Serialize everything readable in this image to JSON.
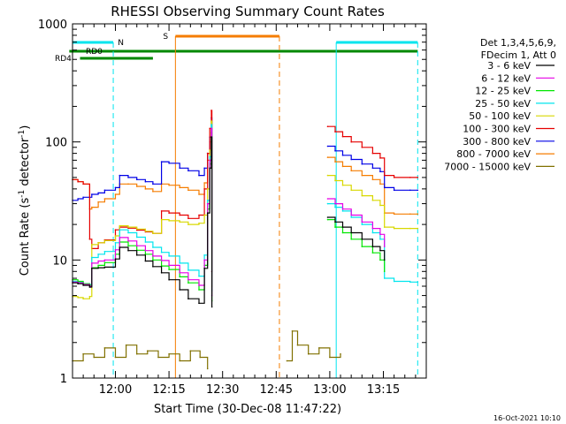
{
  "chart_data": {
    "type": "line",
    "title": "RHESSI Observing Summary Count Rates",
    "xlabel": "Start Time (30-Dec-08 11:47:22)",
    "ylabel_main": "Count Rate (s",
    "ylabel_sup1": "-1",
    "ylabel_mid": " detector",
    "ylabel_sup2": "-1",
    "ylabel_end": ")",
    "y_scale": "log",
    "ylim": [
      1,
      1000
    ],
    "xlim_minutes": [
      -4.0,
      29.0
    ],
    "y_ticks": [
      {
        "value": 1,
        "label": "1"
      },
      {
        "value": 10,
        "label": "10"
      },
      {
        "value": 100,
        "label": "100"
      },
      {
        "value": 1000,
        "label": "1000"
      }
    ],
    "x_ticks": [
      {
        "value": 0,
        "label": "12:00"
      },
      {
        "value": 5,
        "label": "12:15"
      },
      {
        "value": 10,
        "label": "12:30"
      },
      {
        "value": 15,
        "label": "12:45"
      },
      {
        "value": 20,
        "label": "13:00"
      },
      {
        "value": 25,
        "label": "13:15"
      }
    ],
    "legend_placement": "top-right",
    "legend_header": [
      "Det 1,3,4,5,6,9,",
      "FDecim 1, Att 0"
    ],
    "footer_date": "16-Oct-2021 10:10",
    "flags": [
      {
        "name": "N",
        "color": "#00e5ee"
      },
      {
        "name": "S",
        "color": "#f57d00"
      },
      {
        "name": "RD0",
        "color": "#008800"
      },
      {
        "name": "RD4",
        "color": "#008800"
      }
    ],
    "series": [
      {
        "name": "3 - 6 keV",
        "color": "#000000",
        "points": [
          [
            -4,
            6.4
          ],
          [
            -3.5,
            6.3
          ],
          [
            -3,
            6.1
          ],
          [
            -2.4,
            5.9
          ],
          [
            -2.2,
            8.5
          ],
          [
            -1.6,
            8.6
          ],
          [
            -1,
            8.7
          ],
          [
            0,
            10.2
          ],
          [
            0.4,
            12.8
          ],
          [
            1.2,
            12.0
          ],
          [
            2,
            11.0
          ],
          [
            2.8,
            9.8
          ],
          [
            3.5,
            8.8
          ],
          [
            4.3,
            7.8
          ],
          [
            5,
            6.8
          ],
          [
            6,
            5.6
          ],
          [
            6.8,
            4.7
          ],
          [
            7.8,
            4.3
          ],
          [
            8.3,
            8.5
          ],
          [
            8.6,
            25
          ],
          [
            8.8,
            60
          ],
          [
            8.95,
            110
          ],
          [
            9.0,
            4
          ],
          [
            19.8,
            23
          ],
          [
            20.5,
            21
          ],
          [
            21.2,
            19
          ],
          [
            22,
            17
          ],
          [
            23,
            15
          ],
          [
            24,
            13
          ],
          [
            24.7,
            12
          ],
          [
            25.1,
            10
          ]
        ]
      },
      {
        "name": "6 - 12 keV",
        "color": "#e600e6",
        "points": [
          [
            -4,
            6.5
          ],
          [
            -3.5,
            6.4
          ],
          [
            -3,
            6.2
          ],
          [
            -2.4,
            6.0
          ],
          [
            -2.2,
            9.4
          ],
          [
            -1.6,
            9.8
          ],
          [
            -1,
            10.0
          ],
          [
            0,
            12.2
          ],
          [
            0.4,
            15.5
          ],
          [
            1.2,
            14.5
          ],
          [
            2,
            13.2
          ],
          [
            2.8,
            12.0
          ],
          [
            3.5,
            10.8
          ],
          [
            4.3,
            9.9
          ],
          [
            5,
            9.0
          ],
          [
            6,
            7.8
          ],
          [
            6.8,
            6.8
          ],
          [
            7.8,
            6.1
          ],
          [
            8.3,
            10
          ],
          [
            8.6,
            30
          ],
          [
            8.8,
            70
          ],
          [
            8.95,
            130
          ],
          [
            9.0,
            5
          ],
          [
            19.8,
            33
          ],
          [
            20.5,
            30
          ],
          [
            21.2,
            27
          ],
          [
            22,
            24
          ],
          [
            23,
            21
          ],
          [
            24,
            18.5
          ],
          [
            24.7,
            16.5
          ],
          [
            25.1,
            13
          ]
        ]
      },
      {
        "name": "12 - 25 keV",
        "color": "#00e600",
        "points": [
          [
            -4,
            6.8
          ],
          [
            -3.5,
            6.6
          ],
          [
            -3,
            6.3
          ],
          [
            -2.4,
            6.1
          ],
          [
            -2.2,
            8.6
          ],
          [
            -1.6,
            9.0
          ],
          [
            -1,
            9.5
          ],
          [
            0,
            11.2
          ],
          [
            0.4,
            14.2
          ],
          [
            1.2,
            13.2
          ],
          [
            2,
            12.1
          ],
          [
            2.8,
            11.2
          ],
          [
            3.5,
            10.0
          ],
          [
            4.3,
            8.9
          ],
          [
            5,
            8.3
          ],
          [
            6,
            7.2
          ],
          [
            6.8,
            6.4
          ],
          [
            7.8,
            5.6
          ],
          [
            8.3,
            9
          ],
          [
            8.6,
            27
          ],
          [
            8.8,
            65
          ],
          [
            8.95,
            120
          ],
          [
            9.0,
            4.5
          ],
          [
            19.8,
            22
          ],
          [
            20.5,
            19
          ],
          [
            21.2,
            17
          ],
          [
            22,
            15
          ],
          [
            23,
            13
          ],
          [
            24,
            11.5
          ],
          [
            24.7,
            10
          ],
          [
            25.1,
            8
          ]
        ]
      },
      {
        "name": "25 - 50 keV",
        "color": "#00e5ee",
        "points": [
          [
            -4,
            6.6
          ],
          [
            -3.5,
            6.5
          ],
          [
            -3,
            6.3
          ],
          [
            -2.4,
            6.2
          ],
          [
            -2.2,
            10.5
          ],
          [
            -1.6,
            11.2
          ],
          [
            -1,
            11.8
          ],
          [
            0,
            14.0
          ],
          [
            0.4,
            18.0
          ],
          [
            1.2,
            17.0
          ],
          [
            2,
            15.6
          ],
          [
            2.8,
            14.2
          ],
          [
            3.5,
            12.8
          ],
          [
            4.3,
            11.6
          ],
          [
            5,
            10.8
          ],
          [
            6,
            9.4
          ],
          [
            6.8,
            8.2
          ],
          [
            7.8,
            7.3
          ],
          [
            8.3,
            11
          ],
          [
            8.6,
            32
          ],
          [
            8.8,
            75
          ],
          [
            8.95,
            140
          ],
          [
            9.0,
            5.5
          ],
          [
            19.8,
            30
          ],
          [
            20.5,
            28
          ],
          [
            21.2,
            26
          ],
          [
            22,
            23
          ],
          [
            23,
            20
          ],
          [
            24,
            17
          ],
          [
            24.7,
            15
          ],
          [
            25.1,
            7
          ],
          [
            26,
            6.6
          ],
          [
            27.5,
            6.5
          ],
          [
            28.2,
            6.5
          ]
        ]
      },
      {
        "name": "50 - 100 keV",
        "color": "#d8d800",
        "points": [
          [
            -4,
            4.9
          ],
          [
            -3.5,
            4.8
          ],
          [
            -3,
            4.7
          ],
          [
            -2.4,
            4.9
          ],
          [
            -2.2,
            13.5
          ],
          [
            -1.6,
            14.0
          ],
          [
            -1,
            14.6
          ],
          [
            0,
            16.0
          ],
          [
            0.4,
            19.5
          ],
          [
            1.2,
            19.0
          ],
          [
            2,
            18.3
          ],
          [
            2.8,
            17.5
          ],
          [
            3.5,
            16.8
          ],
          [
            4.3,
            22.0
          ],
          [
            5,
            21.5
          ],
          [
            6,
            21.0
          ],
          [
            6.8,
            20.0
          ],
          [
            7.8,
            20.5
          ],
          [
            8.3,
            24
          ],
          [
            8.6,
            40
          ],
          [
            8.8,
            85
          ],
          [
            8.95,
            150
          ],
          [
            9.0,
            6
          ],
          [
            19.8,
            52
          ],
          [
            20.5,
            47
          ],
          [
            21.2,
            43
          ],
          [
            22,
            39
          ],
          [
            23,
            35
          ],
          [
            24,
            32
          ],
          [
            24.7,
            29
          ],
          [
            25.1,
            19
          ],
          [
            26,
            18.5
          ],
          [
            27.5,
            18.5
          ],
          [
            28.2,
            18.5
          ]
        ]
      },
      {
        "name": "100 - 300 keV",
        "color": "#e60000",
        "points": [
          [
            -4,
            48
          ],
          [
            -3.5,
            46
          ],
          [
            -3,
            44
          ],
          [
            -2.4,
            15.0
          ],
          [
            -2.2,
            12.5
          ],
          [
            -1.6,
            14.0
          ],
          [
            -1,
            14.8
          ],
          [
            0,
            18.0
          ],
          [
            0.4,
            19.0
          ],
          [
            1.2,
            18.6
          ],
          [
            2,
            17.9
          ],
          [
            2.8,
            17.3
          ],
          [
            3.5,
            16.8
          ],
          [
            4.3,
            26.0
          ],
          [
            5,
            25.0
          ],
          [
            6,
            24.0
          ],
          [
            6.8,
            22.5
          ],
          [
            7.8,
            24
          ],
          [
            8.3,
            40
          ],
          [
            8.6,
            80
          ],
          [
            8.8,
            130
          ],
          [
            8.95,
            185
          ],
          [
            9.0,
            8
          ],
          [
            19.8,
            135
          ],
          [
            20.5,
            122
          ],
          [
            21.2,
            111
          ],
          [
            22,
            100
          ],
          [
            23,
            90
          ],
          [
            24,
            80
          ],
          [
            24.7,
            73
          ],
          [
            25.1,
            52
          ],
          [
            26,
            50
          ],
          [
            27.5,
            50
          ],
          [
            28.2,
            50
          ]
        ]
      },
      {
        "name": "300 - 800 keV",
        "color": "#0000e6",
        "points": [
          [
            -4,
            32
          ],
          [
            -3.5,
            33
          ],
          [
            -3,
            34
          ],
          [
            -2.4,
            34
          ],
          [
            -2.2,
            36
          ],
          [
            -1.6,
            37
          ],
          [
            -1,
            39
          ],
          [
            0,
            41
          ],
          [
            0.4,
            52
          ],
          [
            1.2,
            50
          ],
          [
            2,
            48
          ],
          [
            2.8,
            46
          ],
          [
            3.5,
            44
          ],
          [
            4.3,
            68
          ],
          [
            5,
            66
          ],
          [
            6,
            60
          ],
          [
            6.8,
            57
          ],
          [
            7.8,
            52
          ],
          [
            8.3,
            60
          ],
          [
            8.6,
            80
          ],
          [
            8.8,
            110
          ],
          [
            8.95,
            160
          ],
          [
            9.0,
            8
          ],
          [
            19.8,
            92
          ],
          [
            20.5,
            84
          ],
          [
            21.2,
            77
          ],
          [
            22,
            71
          ],
          [
            23,
            65
          ],
          [
            24,
            60
          ],
          [
            24.7,
            56
          ],
          [
            25.1,
            41
          ],
          [
            26,
            39
          ],
          [
            27.5,
            39
          ],
          [
            28.2,
            39
          ]
        ]
      },
      {
        "name": "800 - 7000 keV",
        "color": "#f57d00",
        "points": [
          [
            -4,
            48
          ],
          [
            -3.5,
            46
          ],
          [
            -3,
            44
          ],
          [
            -2.4,
            27
          ],
          [
            -2.2,
            28
          ],
          [
            -1.6,
            31
          ],
          [
            -1,
            33
          ],
          [
            0,
            36
          ],
          [
            0.4,
            44
          ],
          [
            1.2,
            44
          ],
          [
            2,
            42
          ],
          [
            2.8,
            40
          ],
          [
            3.5,
            38
          ],
          [
            4.3,
            44
          ],
          [
            5,
            43
          ],
          [
            6,
            41
          ],
          [
            6.8,
            39
          ],
          [
            7.8,
            36
          ],
          [
            8.3,
            45
          ],
          [
            8.6,
            70
          ],
          [
            8.8,
            100
          ],
          [
            8.95,
            150
          ],
          [
            9.0,
            8
          ],
          [
            19.8,
            74
          ],
          [
            20.5,
            68
          ],
          [
            21.2,
            62
          ],
          [
            22,
            57
          ],
          [
            23,
            52
          ],
          [
            24,
            48
          ],
          [
            24.7,
            44
          ],
          [
            25.1,
            25
          ],
          [
            26,
            24.5
          ],
          [
            27.5,
            24.5
          ],
          [
            28.2,
            24.5
          ]
        ]
      },
      {
        "name": "7000 - 15000 keV",
        "color": "#807000",
        "points": [
          [
            -4,
            1.4
          ],
          [
            -3,
            1.6
          ],
          [
            -2,
            1.5
          ],
          [
            -1,
            1.8
          ],
          [
            0,
            1.5
          ],
          [
            1,
            1.9
          ],
          [
            2,
            1.6
          ],
          [
            3,
            1.7
          ],
          [
            4,
            1.5
          ],
          [
            5,
            1.6
          ],
          [
            6,
            1.4
          ],
          [
            7,
            1.7
          ],
          [
            7.9,
            1.5
          ],
          [
            8.6,
            1.2
          ],
          [
            16.0,
            1.4
          ],
          [
            16.5,
            2.5
          ],
          [
            17,
            1.9
          ],
          [
            18,
            1.6
          ],
          [
            19,
            1.8
          ],
          [
            20,
            1.5
          ],
          [
            21,
            1.6
          ]
        ]
      }
    ]
  }
}
